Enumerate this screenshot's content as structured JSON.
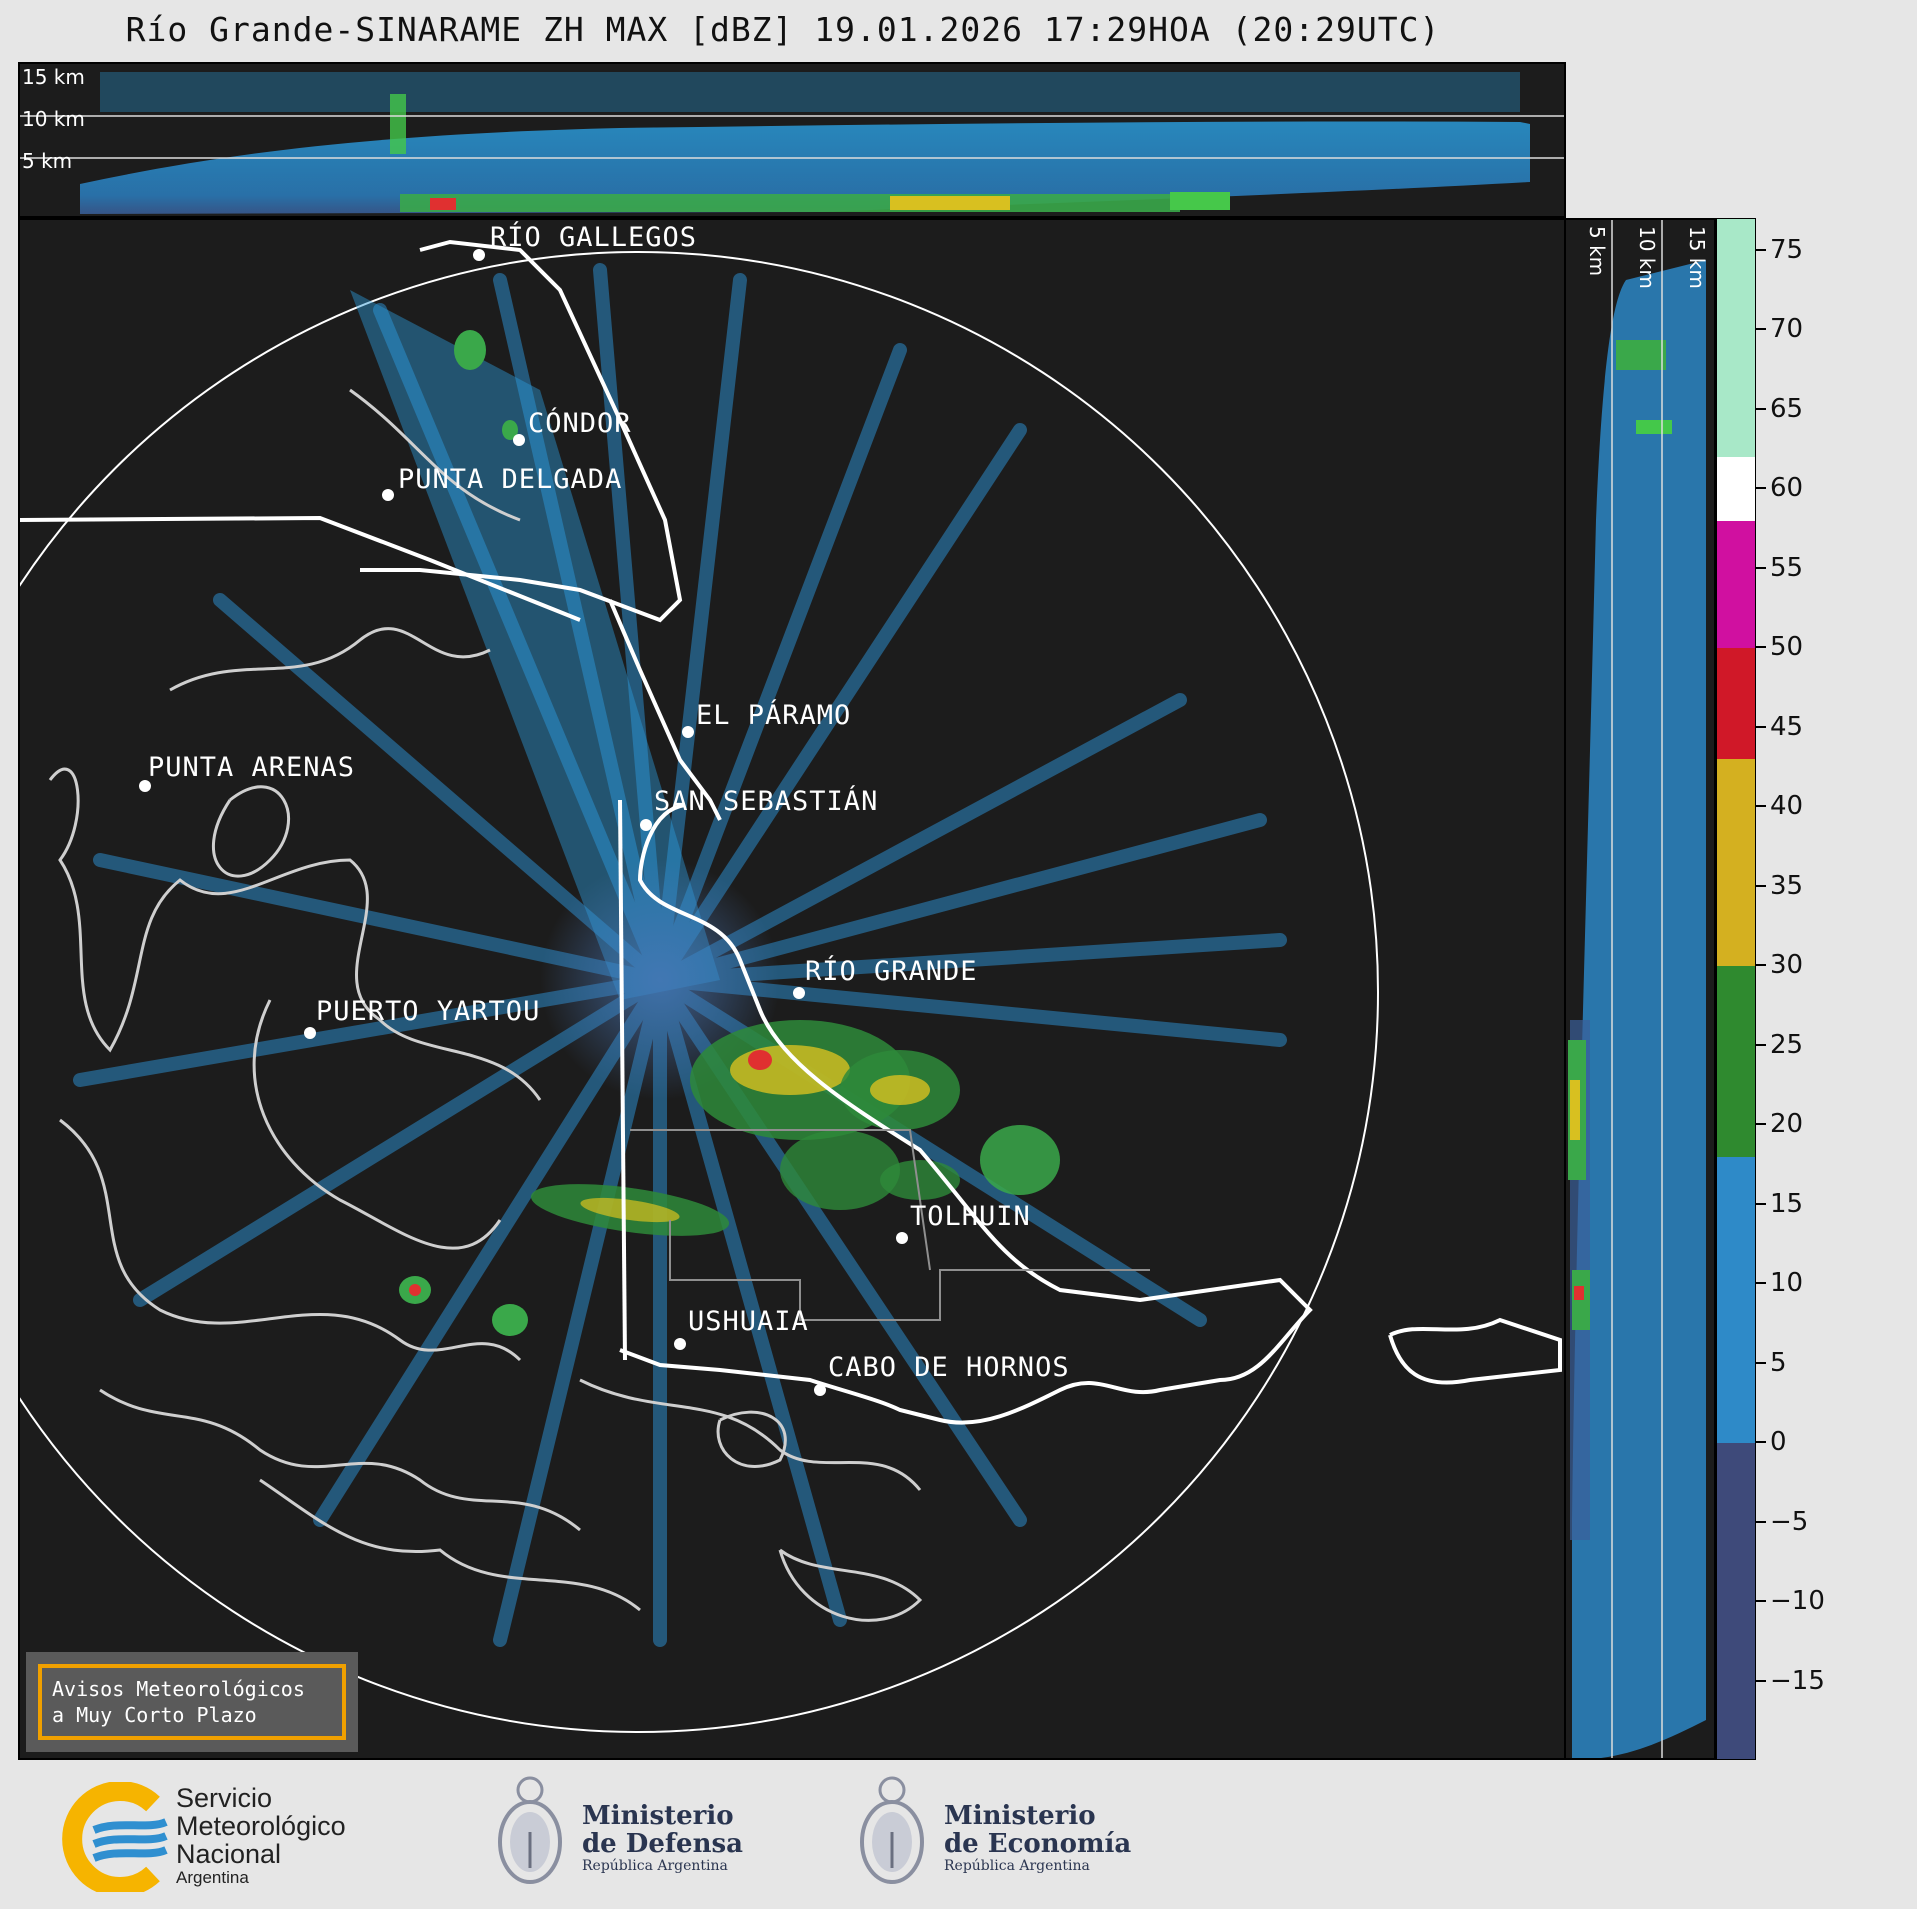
{
  "title": "Río Grande-SINARAME ZH MAX [dBZ] 19.01.2026 17:29HOA (20:29UTC)",
  "top_panel": {
    "height_labels": [
      "15 km",
      "10 km",
      "5 km"
    ]
  },
  "side_panel": {
    "height_labels": [
      "5 km",
      "10 km",
      "15 km"
    ]
  },
  "map": {
    "cities": {
      "rio_gallegos": "RÍO GALLEGOS",
      "condor": "CÓNDOR",
      "punta_delgada": "PUNTA DELGADA",
      "el_paramo": "EL PÁRAMO",
      "punta_arenas": "PUNTA ARENAS",
      "san_sebastian": "SAN SEBASTIÁN",
      "rio_grande": "RÍO GRANDE",
      "puerto_yartou": "PUERTO YARTOU",
      "tolhuin": "TOLHUIN",
      "ushuaia": "USHUAIA",
      "cabo_de_hornos": "CABO DE HORNOS"
    },
    "notice": {
      "line1": "Avisos Meteorológicos",
      "line2": "a Muy Corto Plazo"
    }
  },
  "colorbar": {
    "unit": "dBZ",
    "tick_labels": [
      "75",
      "70",
      "65",
      "60",
      "55",
      "50",
      "45",
      "40",
      "35",
      "30",
      "25",
      "20",
      "15",
      "10",
      "5",
      "0",
      "−5",
      "−10",
      "−15"
    ],
    "ticks": [
      75,
      70,
      65,
      60,
      55,
      50,
      45,
      40,
      35,
      30,
      25,
      20,
      15,
      10,
      5,
      0,
      -5,
      -10,
      -15
    ],
    "range": [
      -20,
      77
    ],
    "colors": [
      {
        "from": -20,
        "to": 0,
        "color": "#3e4a7a"
      },
      {
        "from": 0,
        "to": 18,
        "color": "#2e8ac8"
      },
      {
        "from": 18,
        "to": 30,
        "color": "#2f8a2f"
      },
      {
        "from": 30,
        "to": 43,
        "color": "#d4b020"
      },
      {
        "from": 43,
        "to": 50,
        "color": "#d01828"
      },
      {
        "from": 50,
        "to": 58,
        "color": "#d010a0"
      },
      {
        "from": 58,
        "to": 62,
        "color": "#ffffff"
      },
      {
        "from": 62,
        "to": 77,
        "color": "#a8e8c8"
      }
    ]
  },
  "footer": {
    "smn": {
      "line1": "Servicio",
      "line2": "Meteorológico",
      "line3": "Nacional",
      "line4": "Argentina"
    },
    "defensa": {
      "line1": "Ministerio",
      "line2": "de Defensa",
      "line3": "República Argentina"
    },
    "economia": {
      "line1": "Ministerio",
      "line2": "de Economía",
      "line3": "República Argentina"
    }
  }
}
